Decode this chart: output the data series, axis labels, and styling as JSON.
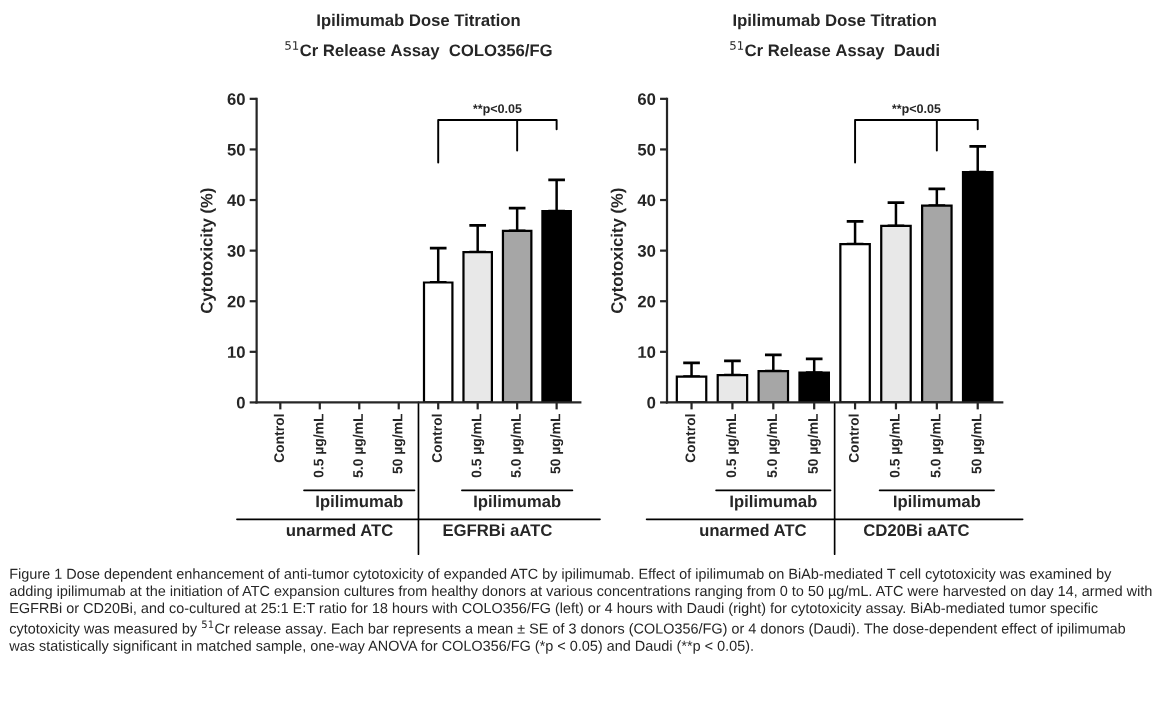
{
  "chart_data": [
    {
      "type": "bar",
      "title": "Ipilimumab Dose Titration",
      "subtitle": "$^{51}$Cr Release Assay  COLO356/FG",
      "ylabel": "Cytotoxicity (%)",
      "categories": [
        "Control",
        "0.5 µg/mL",
        "5.0 µg/mL",
        "50 µg/mL",
        "Control",
        "0.5 µg/mL",
        "5.0 µg/mL",
        "50 µg/mL"
      ],
      "values": [
        null,
        null,
        null,
        null,
        23.7,
        29.7,
        33.9,
        37.8
      ],
      "errors": [
        null,
        null,
        null,
        null,
        [
          23.7,
          30.5
        ],
        [
          29.7,
          35.0
        ],
        [
          33.9,
          38.4
        ],
        [
          37.8,
          44.0
        ]
      ],
      "colors": [
        "#ffffff",
        "#e8e8e8",
        "#a6a6a6",
        "#000000",
        "#ffffff",
        "#e8e8e8",
        "#a6a6a6",
        "#000000"
      ],
      "ylim": [
        0,
        60
      ],
      "yticks": [
        0,
        10,
        20,
        30,
        40,
        50,
        60
      ],
      "grid": false,
      "legend": false,
      "annotations": [
        "Ipilimumab",
        "Ipilimumab",
        "unarmed ATC",
        "EGFRBi aATC",
        "**p<0.05",
        "Figure 1 Dose dependent enhancement of anti-tumor cytotoxicity of expanded ATC by ipilimumab. Effect of ipilimumab on BiAb-mediated T cell cytotoxicity was examined by adding ipilimumab at the initiation of ATC expansion cultures from healthy donors at various concentrations ranging from 0 to 50 µg/mL. ATC were harvested on day 14, armed with EGFRBi or CD20Bi, and co-cultured at 25:1 E:T ratio for 18 hours with COLO356/FG (left) or 4 hours with Daudi (right) for cytotoxicity assay. BiAb-mediated tumor specific cytotoxicity was measured by $^{51}$Cr release assay. Each bar represents a mean ± SE of 3 donors (COLO356/FG) or 4 donors (Daudi). The dose-dependent effect of ipilimumab was statistically significant in matched sample, one-way ANOVA for COLO356/FG (*p < 0.05) and Daudi (**p < 0.05)."
      ]
    },
    {
      "type": "bar",
      "title": "Ipilimumab Dose Titration",
      "subtitle": "$^{51}$Cr Release Assay  Daudi",
      "ylabel": "Cytotoxicity (%)",
      "categories": [
        "Control",
        "0.5 µg/mL",
        "5.0 µg/mL",
        "50 µg/mL",
        "Control",
        "0.5 µg/mL",
        "5.0 µg/mL",
        "50 µg/mL"
      ],
      "values": [
        5.1,
        5.4,
        6.2,
        5.9,
        31.3,
        34.9,
        38.9,
        45.5
      ],
      "errors": [
        [
          5.1,
          7.8
        ],
        [
          5.4,
          8.2
        ],
        [
          6.2,
          9.4
        ],
        [
          5.9,
          8.6
        ],
        [
          31.3,
          35.8
        ],
        [
          34.9,
          39.5
        ],
        [
          38.9,
          42.2
        ],
        [
          45.5,
          50.6
        ]
      ],
      "colors": [
        "#ffffff",
        "#e8e8e8",
        "#a6a6a6",
        "#000000",
        "#ffffff",
        "#e8e8e8",
        "#a6a6a6",
        "#000000"
      ],
      "ylim": [
        0,
        60
      ],
      "yticks": [
        0,
        10,
        20,
        30,
        40,
        50,
        60
      ],
      "grid": false,
      "legend": false,
      "annotations": [
        "Ipilimumab",
        "Ipilimumab",
        "unarmed ATC",
        "CD20Bi aATC",
        "**p<0.05"
      ]
    }
  ]
}
